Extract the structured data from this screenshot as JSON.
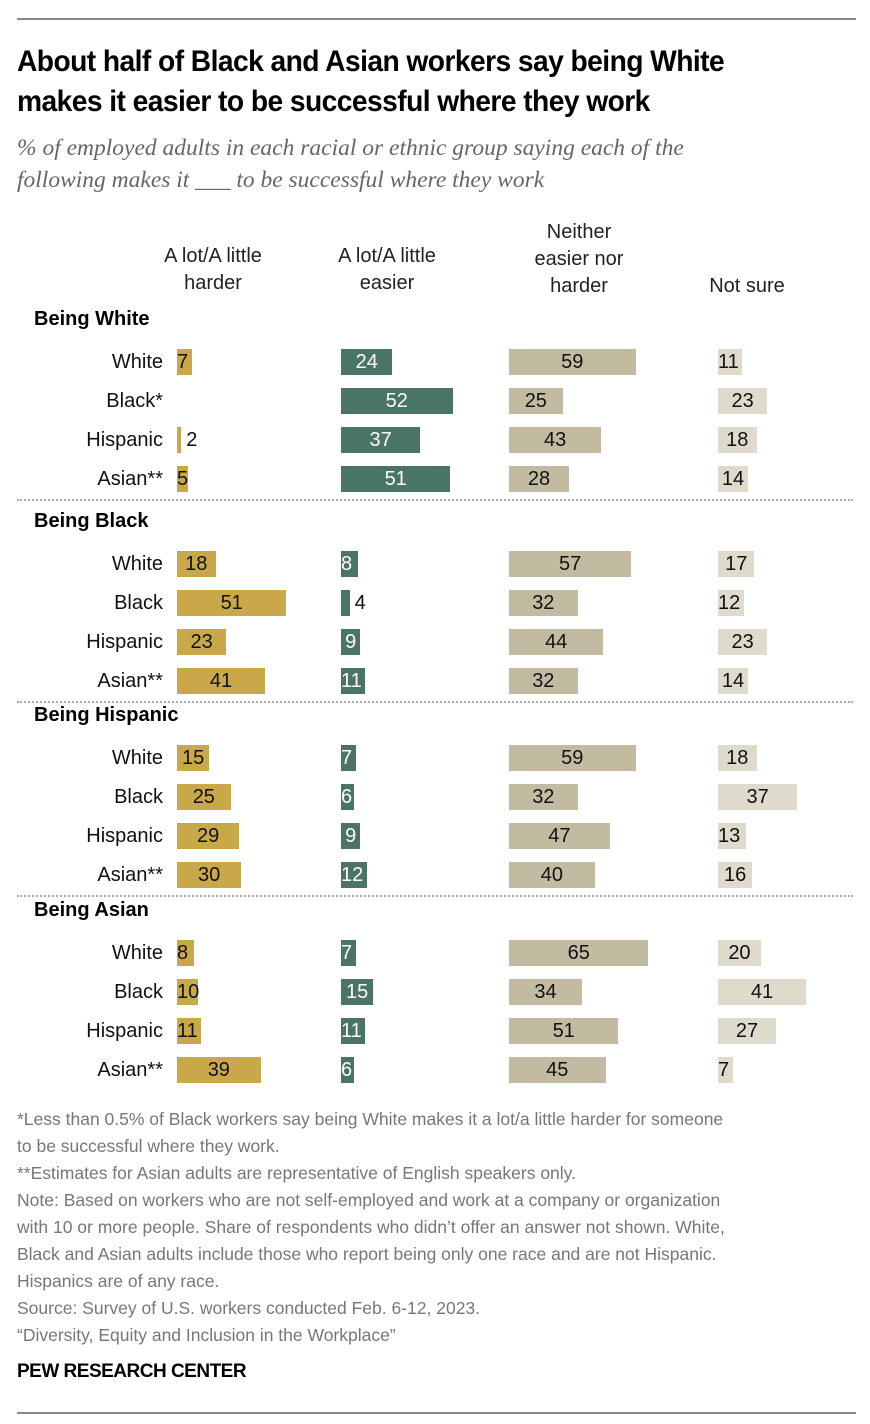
{
  "header": {
    "title_line1": "About half of Black and Asian workers say being White",
    "title_line2": "makes it easier to be successful where they work",
    "subtitle_line1": "% of employed adults in each racial or ethnic group saying each of the",
    "subtitle_line2": "following makes it ___ to be successful where they work"
  },
  "colors": {
    "harder": "#c9a84a",
    "easier": "#4a7565",
    "neither": "#c2bba2",
    "not_sure": "#dedbcc"
  },
  "chart_data": {
    "type": "bar",
    "title": "About half of Black and Asian workers say being White makes it easier to be successful where they work",
    "subtitle": "% of employed adults in each racial or ethnic group saying each of the following makes it ___ to be successful where they work",
    "columns": [
      {
        "key": "harder",
        "label_lines": [
          "A lot/A little",
          "harder"
        ]
      },
      {
        "key": "easier",
        "label_lines": [
          "A lot/A little",
          "easier"
        ]
      },
      {
        "key": "neither",
        "label_lines": [
          "Neither",
          "easier nor",
          "harder"
        ]
      },
      {
        "key": "not_sure",
        "label_lines": [
          "Not sure"
        ]
      }
    ],
    "groups": [
      {
        "name": "Being White",
        "rows": [
          {
            "label": "White",
            "harder": 7,
            "easier": 24,
            "neither": 59,
            "not_sure": 11
          },
          {
            "label": "Black*",
            "harder": null,
            "easier": 52,
            "neither": 25,
            "not_sure": 23
          },
          {
            "label": "Hispanic",
            "harder": 2,
            "easier": 37,
            "neither": 43,
            "not_sure": 18
          },
          {
            "label": "Asian**",
            "harder": 5,
            "easier": 51,
            "neither": 28,
            "not_sure": 14
          }
        ]
      },
      {
        "name": "Being Black",
        "rows": [
          {
            "label": "White",
            "harder": 18,
            "easier": 8,
            "neither": 57,
            "not_sure": 17
          },
          {
            "label": "Black",
            "harder": 51,
            "easier": 4,
            "neither": 32,
            "not_sure": 12
          },
          {
            "label": "Hispanic",
            "harder": 23,
            "easier": 9,
            "neither": 44,
            "not_sure": 23
          },
          {
            "label": "Asian**",
            "harder": 41,
            "easier": 11,
            "neither": 32,
            "not_sure": 14
          }
        ]
      },
      {
        "name": "Being Hispanic",
        "rows": [
          {
            "label": "White",
            "harder": 15,
            "easier": 7,
            "neither": 59,
            "not_sure": 18
          },
          {
            "label": "Black",
            "harder": 25,
            "easier": 6,
            "neither": 32,
            "not_sure": 37
          },
          {
            "label": "Hispanic",
            "harder": 29,
            "easier": 9,
            "neither": 47,
            "not_sure": 13
          },
          {
            "label": "Asian**",
            "harder": 30,
            "easier": 12,
            "neither": 40,
            "not_sure": 16
          }
        ]
      },
      {
        "name": "Being Asian",
        "rows": [
          {
            "label": "White",
            "harder": 8,
            "easier": 7,
            "neither": 65,
            "not_sure": 20
          },
          {
            "label": "Black",
            "harder": 10,
            "easier": 15,
            "neither": 34,
            "not_sure": 41
          },
          {
            "label": "Hispanic",
            "harder": 11,
            "easier": 11,
            "neither": 51,
            "not_sure": 27
          },
          {
            "label": "Asian**",
            "harder": 39,
            "easier": 6,
            "neither": 45,
            "not_sure": 7
          }
        ]
      }
    ],
    "xlim": [
      0,
      100
    ],
    "grid": false,
    "legend": "column-headers-top"
  },
  "footnotes": [
    "*Less than 0.5% of Black workers say being White makes it a lot/a little harder for someone",
    "to be successful where they work.",
    "**Estimates for Asian adults are representative of English speakers only.",
    "Note: Based on workers who are not self-employed and work at a company or organization",
    "with 10 or more people. Share of respondents who didn’t offer an answer not shown. White,",
    "Black and Asian adults include those who report being only one race and are not Hispanic.",
    "Hispanics are of any race.",
    "Source: Survey of U.S. workers conducted Feb. 6-12, 2023.",
    "“Diversity, Equity and Inclusion in the Workplace”"
  ],
  "brand": "PEW RESEARCH CENTER"
}
